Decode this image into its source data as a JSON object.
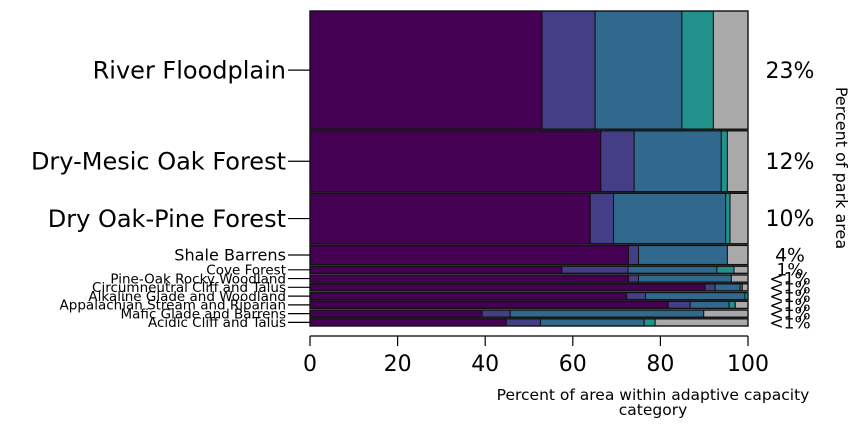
{
  "chart_data": {
    "type": "bar",
    "orientation": "horizontal",
    "stacked": true,
    "categories": [
      "River Floodplain",
      "Dry-Mesic Oak Forest",
      "Dry Oak-Pine Forest",
      "Shale Barrens",
      "Cove Forest",
      "Pine-Oak Rocky Woodland",
      "Circumneutral Cliff and Talus",
      "Alkaline Glade and Woodland",
      "Appalachian Stream and Riparian",
      "Mafic Glade and Barrens",
      "Acidic Cliff and Talus"
    ],
    "area_labels": [
      "23%",
      "12%",
      "10%",
      "4%",
      "1%",
      "<1%",
      "<1%",
      "<1%",
      "<1%",
      "<1%",
      "<1%"
    ],
    "area_share": [
      23,
      12,
      10,
      4,
      1,
      0.6,
      0.6,
      0.6,
      0.6,
      0.6,
      0.6
    ],
    "series": [
      {
        "values": [
          53,
          66.4,
          64,
          72.7,
          57.5,
          72.7,
          90.2,
          72.3,
          81.8,
          39.3,
          44.8
        ]
      },
      {
        "values": [
          12.1,
          7.6,
          5.3,
          2.3,
          15.1,
          2.3,
          2.3,
          4.3,
          5,
          6.4,
          7.8
        ]
      },
      {
        "values": [
          19.8,
          19.9,
          25.6,
          20.3,
          20.3,
          21.2,
          5.7,
          22.7,
          8.9,
          44.2,
          23.7
        ]
      },
      {
        "values": [
          7.2,
          1.4,
          1,
          0,
          3.9,
          0,
          0.5,
          0.7,
          1.4,
          0,
          2.5
        ]
      },
      {
        "values": [
          7.9,
          4.7,
          4.1,
          4.7,
          3.2,
          3.8,
          1.3,
          0,
          2.9,
          10.1,
          21.2
        ]
      }
    ],
    "colors": [
      "#440154",
      "#433e85",
      "#31688e",
      "#21918c",
      "#aaaaaa"
    ],
    "xlim": [
      0,
      100
    ],
    "xticks": [
      0,
      20,
      40,
      60,
      80,
      100
    ],
    "xlabel": "Percent of area within adaptive capacity category",
    "ylabel_right": "Percent of park area",
    "grid": false,
    "legend": "none"
  }
}
